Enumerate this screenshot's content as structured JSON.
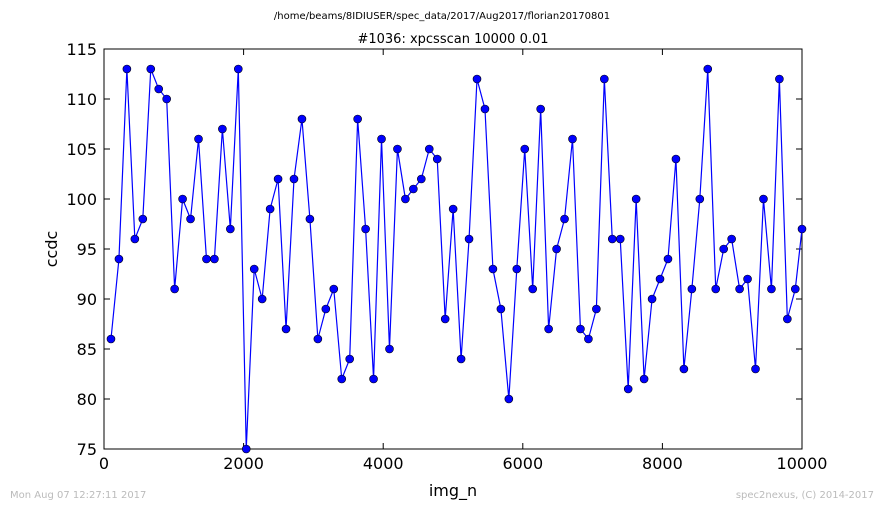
{
  "header": {
    "path": "/home/beams/8IDIUSER/spec_data/2017/Aug2017/florian20170801"
  },
  "footer": {
    "timestamp": "Mon Aug 07 12:27:11 2017",
    "credit": "spec2nexus, (C) 2014-2017"
  },
  "colors": {
    "series": "#0000ff",
    "axis": "#000000",
    "footer_text": "#bbbbbb"
  },
  "chart_data": {
    "type": "line",
    "title": "#1036: xpcsscan 10000 0.01",
    "xlabel": "img_n",
    "ylabel": "ccdc",
    "xlim": [
      0,
      10000
    ],
    "ylim": [
      75,
      115
    ],
    "xticks": [
      0,
      2000,
      4000,
      6000,
      8000,
      10000
    ],
    "xtick_labels": [
      "0",
      "2000",
      "4000",
      "6000",
      "8000",
      "10000"
    ],
    "yticks": [
      75,
      80,
      85,
      90,
      95,
      100,
      105,
      110,
      115
    ],
    "ytick_labels": [
      "75",
      "80",
      "85",
      "90",
      "95",
      "100",
      "105",
      "110",
      "115"
    ],
    "grid": false,
    "marker": "circle",
    "x": [
      100,
      214,
      328,
      442,
      556,
      670,
      784,
      898,
      1012,
      1126,
      1240,
      1354,
      1468,
      1582,
      1696,
      1810,
      1924,
      2038,
      2152,
      2266,
      2380,
      2494,
      2608,
      2722,
      2836,
      2950,
      3064,
      3178,
      3292,
      3406,
      3520,
      3634,
      3748,
      3862,
      3976,
      4090,
      4204,
      4318,
      4432,
      4546,
      4660,
      4774,
      4888,
      5002,
      5116,
      5230,
      5344,
      5458,
      5572,
      5686,
      5800,
      5914,
      6028,
      6142,
      6256,
      6370,
      6484,
      6598,
      6712,
      6826,
      6940,
      7054,
      7168,
      7282,
      7396,
      7510,
      7624,
      7738,
      7852,
      7966,
      8080,
      8194,
      8308,
      8422,
      8536,
      8650,
      8764,
      8878,
      8992,
      9106,
      9220,
      9334,
      9448,
      9562,
      9676,
      9790,
      9904,
      10000
    ],
    "y": [
      86,
      94,
      113,
      96,
      98,
      113,
      111,
      110,
      91,
      100,
      98,
      106,
      94,
      94,
      107,
      97,
      113,
      75,
      93,
      90,
      99,
      102,
      87,
      102,
      108,
      98,
      86,
      89,
      91,
      82,
      84,
      108,
      97,
      82,
      106,
      85,
      105,
      100,
      101,
      102,
      105,
      104,
      88,
      99,
      84,
      96,
      112,
      109,
      93,
      89,
      80,
      93,
      105,
      91,
      109,
      87,
      95,
      98,
      106,
      87,
      86,
      89,
      112,
      96,
      96,
      81,
      100,
      82,
      90,
      92,
      94,
      104,
      83,
      91,
      100,
      113,
      91,
      95,
      96,
      91,
      92,
      83,
      100,
      91,
      112,
      88,
      91,
      97
    ]
  }
}
